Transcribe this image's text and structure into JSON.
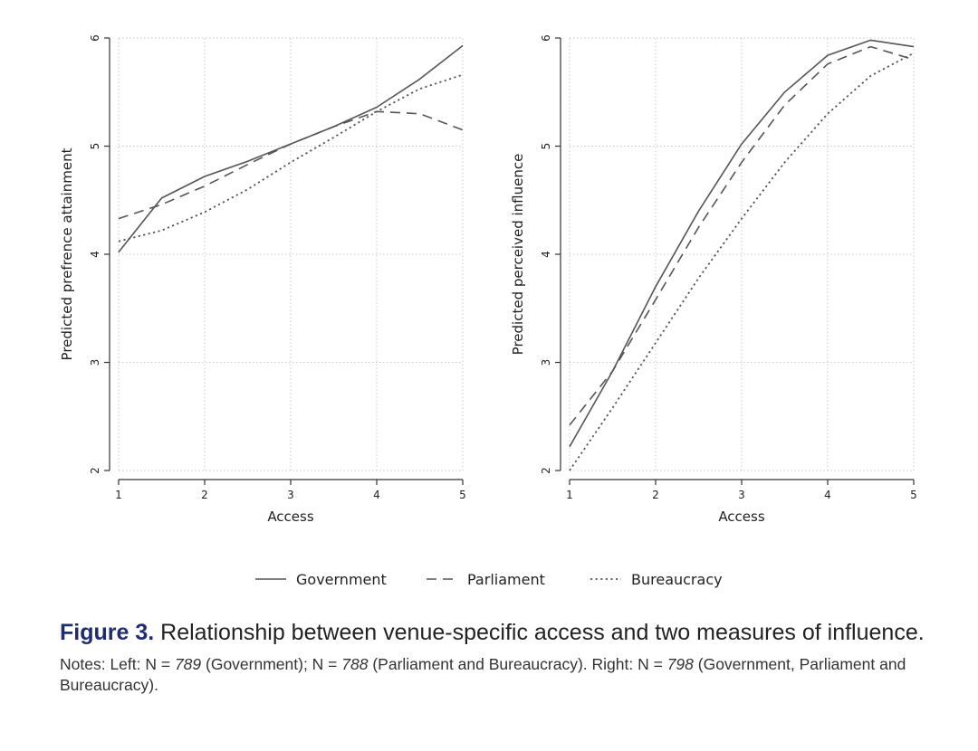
{
  "chart_data": [
    {
      "type": "line",
      "panel": "left",
      "xlabel": "Access",
      "ylabel": "Predicted prefrence attainment",
      "xlim": [
        1,
        5
      ],
      "ylim": [
        2,
        6
      ],
      "xticks": [
        "1",
        "2",
        "3",
        "4",
        "5"
      ],
      "yticks": [
        "2",
        "3",
        "4",
        "5",
        "6"
      ],
      "grid": true,
      "x": [
        1,
        1.5,
        2,
        2.5,
        3,
        3.5,
        4,
        4.5,
        5
      ],
      "series": [
        {
          "name": "Government",
          "values": [
            4.02,
            4.52,
            4.72,
            4.86,
            5.02,
            5.18,
            5.36,
            5.62,
            5.93
          ]
        },
        {
          "name": "Parliament",
          "values": [
            4.33,
            4.46,
            4.63,
            4.83,
            5.02,
            5.18,
            5.32,
            5.3,
            5.15
          ]
        },
        {
          "name": "Bureaucracy",
          "values": [
            4.12,
            4.22,
            4.39,
            4.6,
            4.85,
            5.08,
            5.32,
            5.53,
            5.66
          ]
        }
      ]
    },
    {
      "type": "line",
      "panel": "right",
      "xlabel": "Access",
      "ylabel": "Predicted perceived influence",
      "xlim": [
        1,
        5
      ],
      "ylim": [
        2,
        6
      ],
      "xticks": [
        "1",
        "2",
        "3",
        "4",
        "5"
      ],
      "yticks": [
        "2",
        "3",
        "4",
        "5",
        "6"
      ],
      "grid": true,
      "x": [
        1,
        1.5,
        2,
        2.5,
        3,
        3.5,
        4,
        4.5,
        5
      ],
      "series": [
        {
          "name": "Government",
          "values": [
            2.22,
            2.92,
            3.7,
            4.4,
            5.02,
            5.5,
            5.84,
            5.98,
            5.92
          ]
        },
        {
          "name": "Parliament",
          "values": [
            2.42,
            2.92,
            3.58,
            4.25,
            4.85,
            5.38,
            5.76,
            5.92,
            5.8
          ]
        },
        {
          "name": "Bureaucracy",
          "values": [
            2.0,
            2.58,
            3.18,
            3.78,
            4.33,
            4.85,
            5.3,
            5.65,
            5.86
          ]
        }
      ]
    }
  ],
  "legend": {
    "placement": "bottom-center",
    "entries": [
      {
        "label": "Government",
        "style": "solid"
      },
      {
        "label": "Parliament",
        "style": "dashed"
      },
      {
        "label": "Bureaucracy",
        "style": "dotted"
      }
    ]
  },
  "colors": {
    "line": "#555555",
    "axis": "#333333",
    "grid": "#c8c8c8",
    "figure_label": "#1f2d6e"
  },
  "caption": {
    "label": "Figure 3.",
    "text": "Relationship between venue-specific access and two measures of influence.",
    "notes": {
      "left_prefix": "Notes: Left: N = ",
      "left_n_gov": "789",
      "left_gov_text": " (Government); N = ",
      "left_n_parl": "788",
      "left_parl_text": " (Parliament and Bureaucracy). Right: N = ",
      "right_n": "798",
      "right_text": " (Government, Parliament and Bureaucracy)."
    }
  }
}
